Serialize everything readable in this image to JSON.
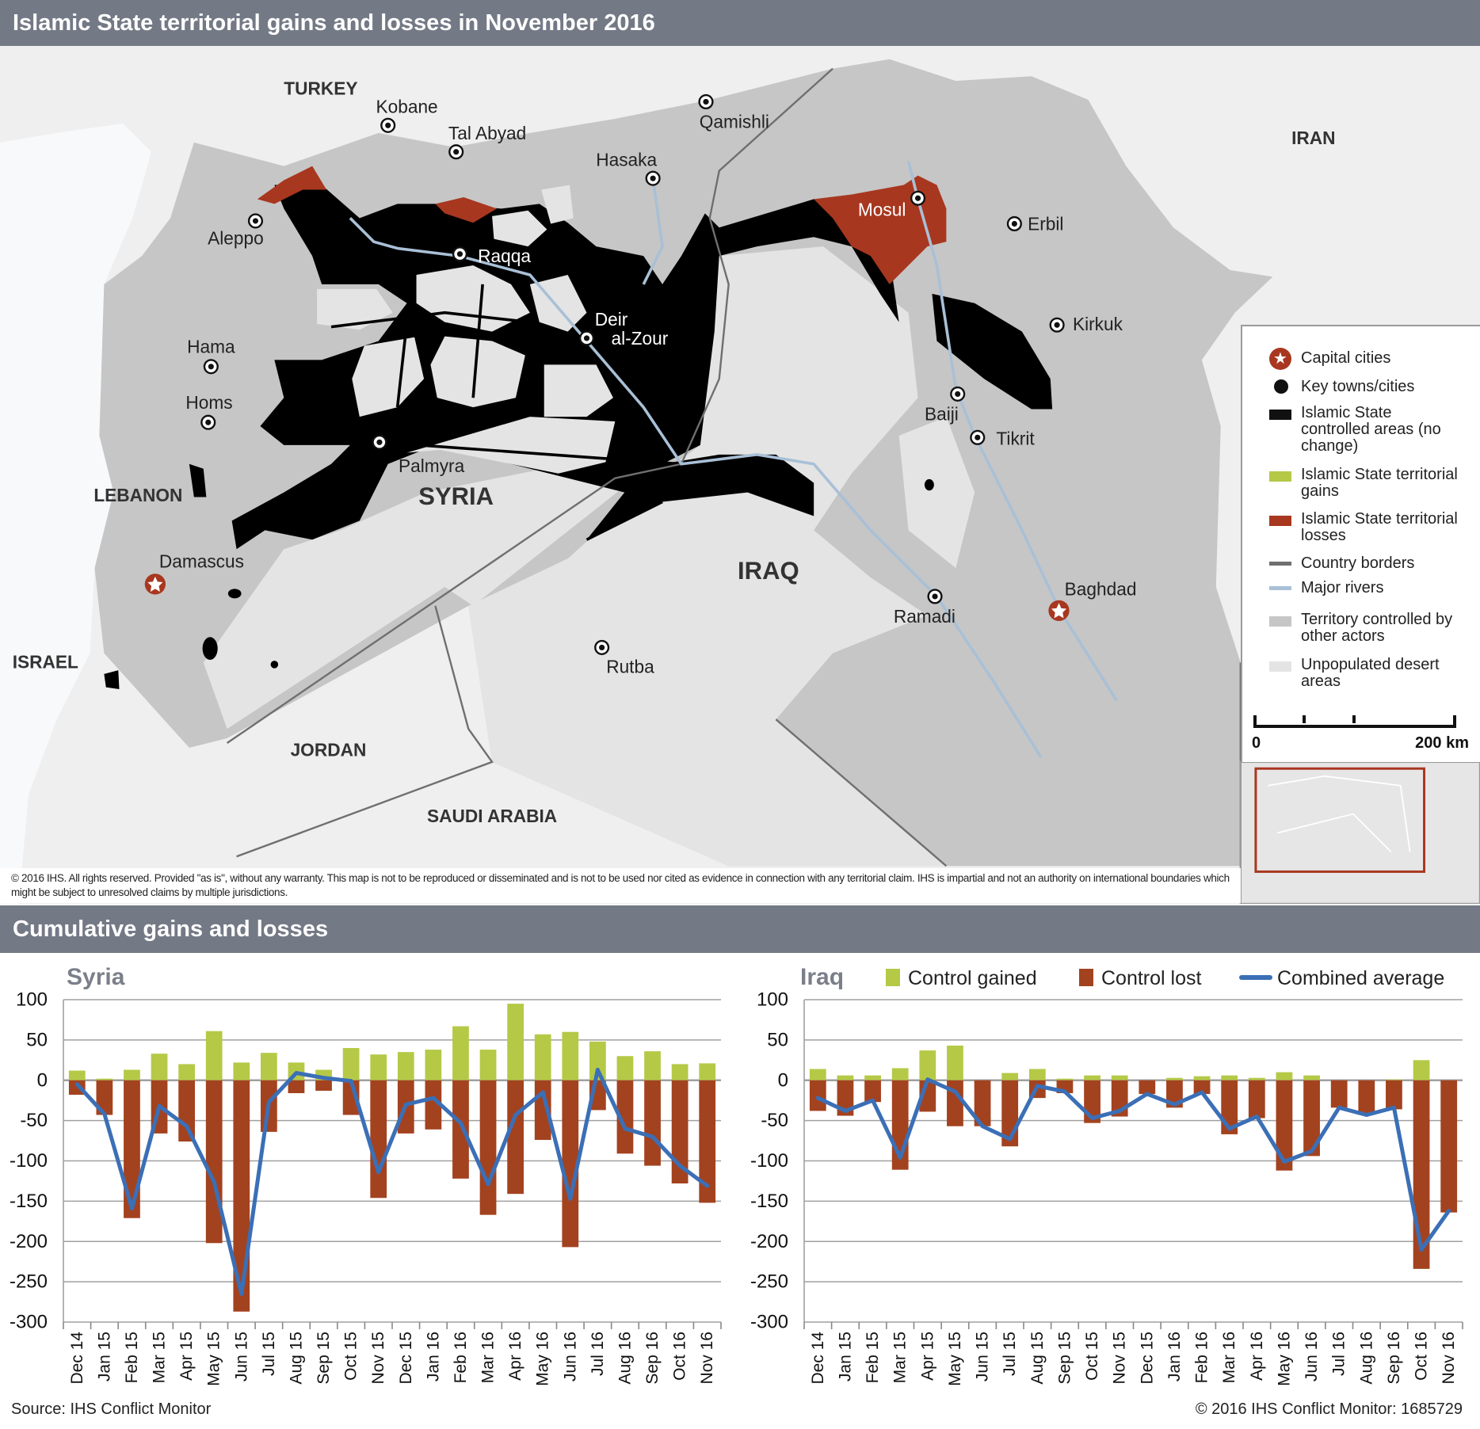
{
  "header": {
    "title": "Islamic State territorial gains and losses in November 2016",
    "section2_title": "Cumulative gains and losses"
  },
  "colors": {
    "header_bg": "#737985",
    "is_control": "#000000",
    "is_gains": "#b5c947",
    "is_losses": "#a8371f",
    "other_actors": "#c6c6c6",
    "desert": "#e4e4e4",
    "rivers": "#a9c0d6",
    "borders": "#6f6f6f",
    "combined_average": "#3b6fb6"
  },
  "map": {
    "countries": [
      "TURKEY",
      "IRAN",
      "LEBANON",
      "SYRIA",
      "IRAQ",
      "ISRAEL",
      "JORDAN",
      "SAUDI ARABIA"
    ],
    "cities": [
      {
        "name": "Kobane"
      },
      {
        "name": "Tal Abyad"
      },
      {
        "name": "Qamishli"
      },
      {
        "name": "Hasaka"
      },
      {
        "name": "Aleppo"
      },
      {
        "name": "Raqqa"
      },
      {
        "lines": [
          "Deir",
          "al-Zour"
        ]
      },
      {
        "name": "Mosul"
      },
      {
        "name": "Erbil"
      },
      {
        "name": "Kirkuk"
      },
      {
        "name": "Baiji"
      },
      {
        "name": "Tikrit"
      },
      {
        "name": "Hama"
      },
      {
        "name": "Homs"
      },
      {
        "name": "Palmyra"
      },
      {
        "name": "Ramadi"
      },
      {
        "name": "Rutba"
      }
    ],
    "capitals": [
      {
        "name": "Damascus"
      },
      {
        "name": "Baghdad"
      }
    ],
    "copyright": "© 2016 IHS. All rights reserved. Provided \"as is\", without any warranty. This map is not to be reproduced or disseminated and is not to be used nor cited as evidence in connection with any territorial claim. IHS is impartial and not an authority on international boundaries which might be subject to unresolved claims by multiple jurisdictions."
  },
  "legend": {
    "items": [
      {
        "label": "Capital cities",
        "icon": "star-in-circle"
      },
      {
        "label": "Key towns/cities",
        "icon": "dot"
      },
      {
        "label": "Islamic State controlled areas (no change)",
        "icon": "black-swatch"
      },
      {
        "label": "Islamic State territorial gains",
        "icon": "green-swatch"
      },
      {
        "label": "Islamic State territorial losses",
        "icon": "red-swatch"
      },
      {
        "label": "Country borders",
        "icon": "gray-line"
      },
      {
        "label": "Major rivers",
        "icon": "blue-line"
      },
      {
        "label": "Territory controlled by other actors",
        "icon": "gray-swatch"
      },
      {
        "label": "Unpopulated desert areas",
        "icon": "light-swatch"
      }
    ],
    "scale": {
      "start": "0",
      "end": "200 km"
    }
  },
  "chart_legend": [
    "Control gained",
    "Control lost",
    "Combined average"
  ],
  "chart_data": [
    {
      "type": "bar",
      "title": "Syria",
      "categories": [
        "Dec 14",
        "Jan 15",
        "Feb 15",
        "Mar 15",
        "Apr 15",
        "May 15",
        "Jun 15",
        "Jul 15",
        "Aug 15",
        "Sep 15",
        "Oct 15",
        "Nov 15",
        "Dec 15",
        "Jan 16",
        "Feb 16",
        "Mar 16",
        "Apr 16",
        "May 16",
        "Jun 16",
        "Jul 16",
        "Aug 16",
        "Sep 16",
        "Oct 16",
        "Nov 16"
      ],
      "series": [
        {
          "name": "Control gained",
          "type": "bar",
          "values": [
            12,
            2,
            13,
            33,
            20,
            61,
            22,
            34,
            22,
            13,
            40,
            32,
            35,
            38,
            67,
            38,
            95,
            57,
            60,
            48,
            30,
            36,
            20,
            21
          ]
        },
        {
          "name": "Control lost",
          "type": "bar",
          "values": [
            -18,
            -43,
            -171,
            -66,
            -76,
            -202,
            -287,
            -64,
            -16,
            -13,
            -43,
            -146,
            -66,
            -61,
            -122,
            -167,
            -141,
            -74,
            -207,
            -37,
            -91,
            -106,
            -128,
            -152
          ]
        },
        {
          "name": "Combined average",
          "type": "line",
          "values": [
            -5,
            -42,
            -159,
            -32,
            -57,
            -126,
            -265,
            -27,
            9,
            3,
            -1,
            -114,
            -30,
            -22,
            -53,
            -129,
            -43,
            -15,
            -147,
            13,
            -60,
            -70,
            -106,
            -131
          ]
        }
      ],
      "ylim": [
        -300,
        100
      ],
      "yticks": [
        "100",
        "50",
        "0",
        "-50",
        "-100",
        "-150",
        "-200",
        "-250",
        "-300"
      ],
      "grid": true
    },
    {
      "type": "bar",
      "title": "Iraq",
      "categories": [
        "Dec 14",
        "Jan 15",
        "Feb 15",
        "Mar 15",
        "Apr 15",
        "May 15",
        "Jun 15",
        "Jul 15",
        "Aug 15",
        "Sep 15",
        "Oct 15",
        "Nov 15",
        "Dec 15",
        "Jan 16",
        "Feb 16",
        "Mar 16",
        "Apr 16",
        "May 16",
        "Jun 16",
        "Jul 16",
        "Aug 16",
        "Sep 16",
        "Oct 16",
        "Nov 16"
      ],
      "series": [
        {
          "name": "Control gained",
          "type": "bar",
          "values": [
            14,
            6,
            6,
            15,
            37,
            43,
            0,
            9,
            14,
            2,
            6,
            6,
            0,
            3,
            5,
            6,
            3,
            10,
            6,
            0,
            0,
            1,
            25,
            0
          ]
        },
        {
          "name": "Control lost",
          "type": "bar",
          "values": [
            -38,
            -44,
            -27,
            -111,
            -39,
            -57,
            -57,
            -82,
            -22,
            -16,
            -53,
            -45,
            -17,
            -34,
            -17,
            -67,
            -47,
            -112,
            -94,
            -34,
            -43,
            -36,
            -234,
            -164
          ]
        },
        {
          "name": "Combined average",
          "type": "line",
          "values": [
            -22,
            -38,
            -25,
            -96,
            1,
            -14,
            -57,
            -73,
            -7,
            -14,
            -47,
            -38,
            -17,
            -30,
            -15,
            -60,
            -45,
            -101,
            -88,
            -34,
            -43,
            -34,
            -210,
            -162
          ]
        }
      ],
      "ylim": [
        -300,
        100
      ],
      "yticks": [
        "100",
        "50",
        "0",
        "-50",
        "-100",
        "-150",
        "-200",
        "-250",
        "-300"
      ],
      "grid": true,
      "legend": "top-right"
    }
  ],
  "footer": {
    "source": "Source: IHS Conflict Monitor",
    "copyright": "© 2016 IHS Conflict Monitor: 1685729"
  }
}
